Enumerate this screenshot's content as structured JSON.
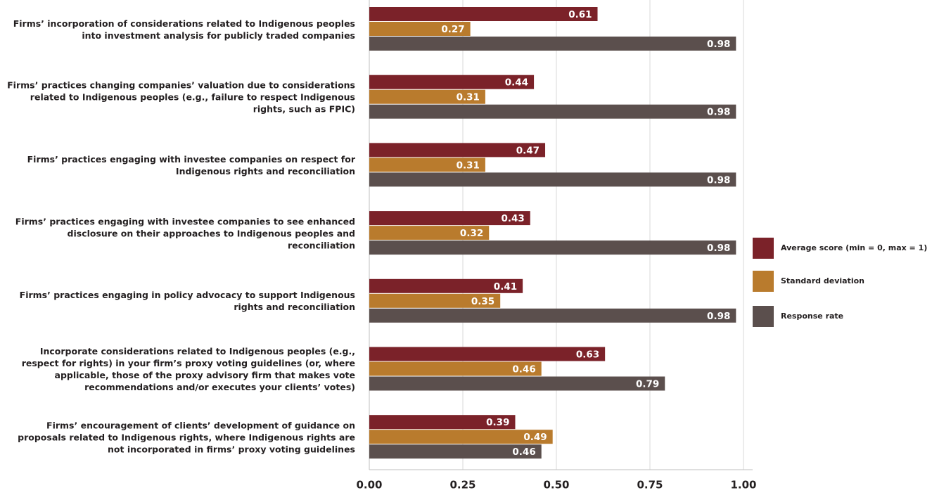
{
  "chart_data": {
    "type": "hbar",
    "categories": [
      "Firms’ incorporation of considerations related to Indigenous peoples into investment analysis for publicly traded companies",
      "Firms’ practices changing companies’ valuation due to considerations related to Indigenous peoples (e.g., failure to respect Indigenous rights, such as FPIC)",
      "Firms’ practices engaging with investee companies on respect for Indigenous rights and reconciliation",
      "Firms’ practices engaging with investee companies to see enhanced disclosure on their approaches to Indigenous peoples and reconciliation",
      "Firms’ practices engaging in policy advocacy to support Indigenous rights and reconciliation",
      "Incorporate considerations related to Indigenous peoples (e.g., respect for rights) in your firm’s proxy voting guidelines (or, where applicable, those of the proxy advisory firm that makes vote recommendations and/or executes your clients’ votes)",
      "Firms’ encouragement of clients’ development of guidance on proposals related to Indigenous rights, where Indigenous rights are not incorporated in firms’ proxy voting guidelines"
    ],
    "series": [
      {
        "name": "Average score (min = 0, max = 1)",
        "color": "#7b2229",
        "values": [
          0.61,
          0.44,
          0.47,
          0.43,
          0.41,
          0.63,
          0.39
        ]
      },
      {
        "name": "Standard deviation",
        "color": "#b97b2d",
        "values": [
          0.27,
          0.31,
          0.31,
          0.32,
          0.35,
          0.46,
          0.49
        ]
      },
      {
        "name": "Response rate",
        "color": "#5b4f4d",
        "values": [
          0.98,
          0.98,
          0.98,
          0.98,
          0.98,
          0.79,
          0.46
        ]
      }
    ],
    "xlim": [
      0,
      1
    ],
    "xticks": [
      {
        "value": 0,
        "label": "0.00"
      },
      0.25,
      {
        "value": 0.5,
        "label": "0.50"
      },
      0.75,
      {
        "value": 1,
        "label": "1.00"
      }
    ],
    "grid": true,
    "legend": "right"
  }
}
